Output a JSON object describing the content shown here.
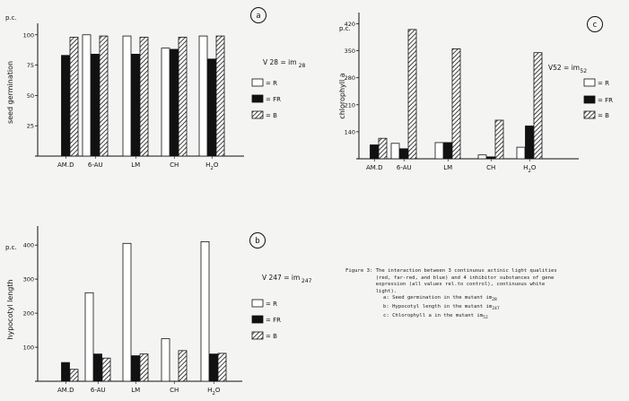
{
  "chart_data": [
    {
      "id": "a",
      "panel_label": "a",
      "type": "bar",
      "unit_label": "p.c.",
      "ylabel": "seed germination",
      "title_line": "V 28 = im",
      "title_sub": "28",
      "yticks": [
        "25",
        "50",
        "75",
        "100"
      ],
      "ylim": [
        0,
        105
      ],
      "categories": [
        "AM.D",
        "6-AU",
        "LM",
        "CH",
        "H2O"
      ],
      "series": [
        {
          "name": "R",
          "values": [
            null,
            100,
            99,
            89,
            99
          ]
        },
        {
          "name": "FR",
          "values": [
            83,
            84,
            84,
            88,
            80
          ]
        },
        {
          "name": "B",
          "values": [
            98,
            99,
            98,
            98,
            99
          ]
        }
      ],
      "legend": [
        "= R",
        "= FR",
        "= B"
      ],
      "legend_position": "right"
    },
    {
      "id": "b",
      "panel_label": "b",
      "type": "bar",
      "unit_label": "p.c.",
      "ylabel": "hypocotyl length",
      "title_line": "V 247 = im",
      "title_sub": "247",
      "yticks": [
        "100",
        "200",
        "300",
        "400"
      ],
      "ylim": [
        0,
        440
      ],
      "categories": [
        "AM.D",
        "6-AU",
        "LM",
        "CH",
        "H2O"
      ],
      "series": [
        {
          "name": "R",
          "values": [
            null,
            260,
            405,
            125,
            410
          ]
        },
        {
          "name": "FR",
          "values": [
            55,
            80,
            75,
            null,
            80
          ]
        },
        {
          "name": "B",
          "values": [
            35,
            68,
            80,
            90,
            82
          ]
        }
      ],
      "legend": [
        "= R",
        "= FR",
        "= B"
      ],
      "legend_position": "right"
    },
    {
      "id": "c",
      "panel_label": "c",
      "type": "bar",
      "unit_label": "p.c.",
      "ylabel": "chlorophyll a",
      "title_line": "V52 = im",
      "title_sub": "52",
      "yticks": [
        "140",
        "210",
        "280",
        "350",
        "420"
      ],
      "ylim": [
        70,
        435
      ],
      "categories": [
        "AM.D",
        "6-AU",
        "LM",
        "CH",
        "H2O"
      ],
      "series": [
        {
          "name": "R",
          "values": [
            null,
            110,
            112,
            80,
            100
          ]
        },
        {
          "name": "FR",
          "values": [
            106,
            96,
            112,
            75,
            155
          ]
        },
        {
          "name": "B",
          "values": [
            123,
            405,
            355,
            170,
            345
          ]
        }
      ],
      "legend": [
        "= R",
        "= FR",
        "= B"
      ],
      "legend_position": "right"
    }
  ],
  "caption": {
    "lines": [
      "Figure 3: The interaction between 3 continuous actinic light qualities",
      "          (red, far-red, and blue) and 4 inhibitor substances of gene",
      "          expression (all values rel.to control), continuous white",
      "          light)."
    ],
    "items": [
      {
        "text": "a: Seed germination in the mutant im",
        "sub": "28"
      },
      {
        "text": "b: Hypocotyl length in the mutant im",
        "sub": "247"
      },
      {
        "text": "c: Chlorophyll a in the mutant im",
        "sub": "52"
      }
    ]
  },
  "colors": {
    "R": "#ffffff",
    "FR": "#111111",
    "B": "hatched",
    "ink": "#111111",
    "background": "#f4f4f2"
  }
}
